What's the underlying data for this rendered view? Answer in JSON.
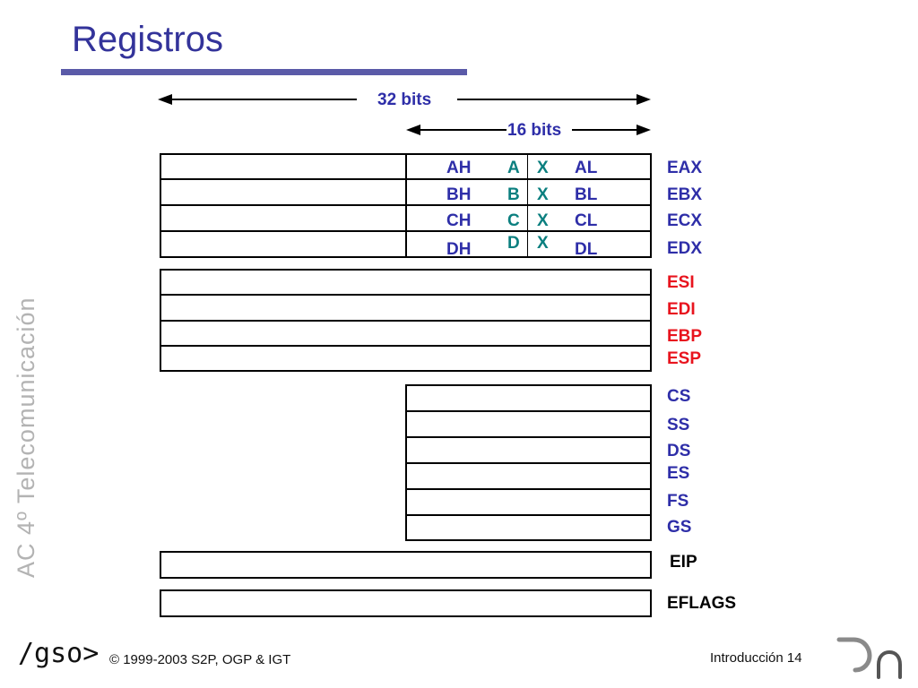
{
  "slide": {
    "title": "Registros",
    "sidebar": "AC 4º Telecomunicación",
    "footer_logo": "/gso>",
    "footer_copyright": "© 1999-2003 S2P, OGP & IGT",
    "footer_page": "Introducción 14"
  },
  "dimensions": {
    "bits32": "32 bits",
    "bits16": "16 bits"
  },
  "general_registers": [
    {
      "high": "AH",
      "letter": "A",
      "x": "X",
      "low": "AL",
      "name": "EAX"
    },
    {
      "high": "BH",
      "letter": "B",
      "x": "X",
      "low": "BL",
      "name": "EBX"
    },
    {
      "high": "CH",
      "letter": "C",
      "x": "X",
      "low": "CL",
      "name": "ECX"
    },
    {
      "high": "DH",
      "letter": "D",
      "x": "X",
      "low": "DL",
      "name": "EDX"
    }
  ],
  "index_registers": [
    "ESI",
    "EDI",
    "EBP",
    "ESP"
  ],
  "segment_registers": [
    "CS",
    "SS",
    "DS",
    "ES",
    "FS",
    "GS"
  ],
  "instruction_pointer": "EIP",
  "flags_register": "EFLAGS",
  "colors": {
    "title": "#33339a",
    "title_bar": "#5a5aa8",
    "blue_label": "#2e2ea8",
    "red_label": "#e8141e",
    "teal_label": "#0b7f7f",
    "sidebar": "#b3b3b3"
  }
}
